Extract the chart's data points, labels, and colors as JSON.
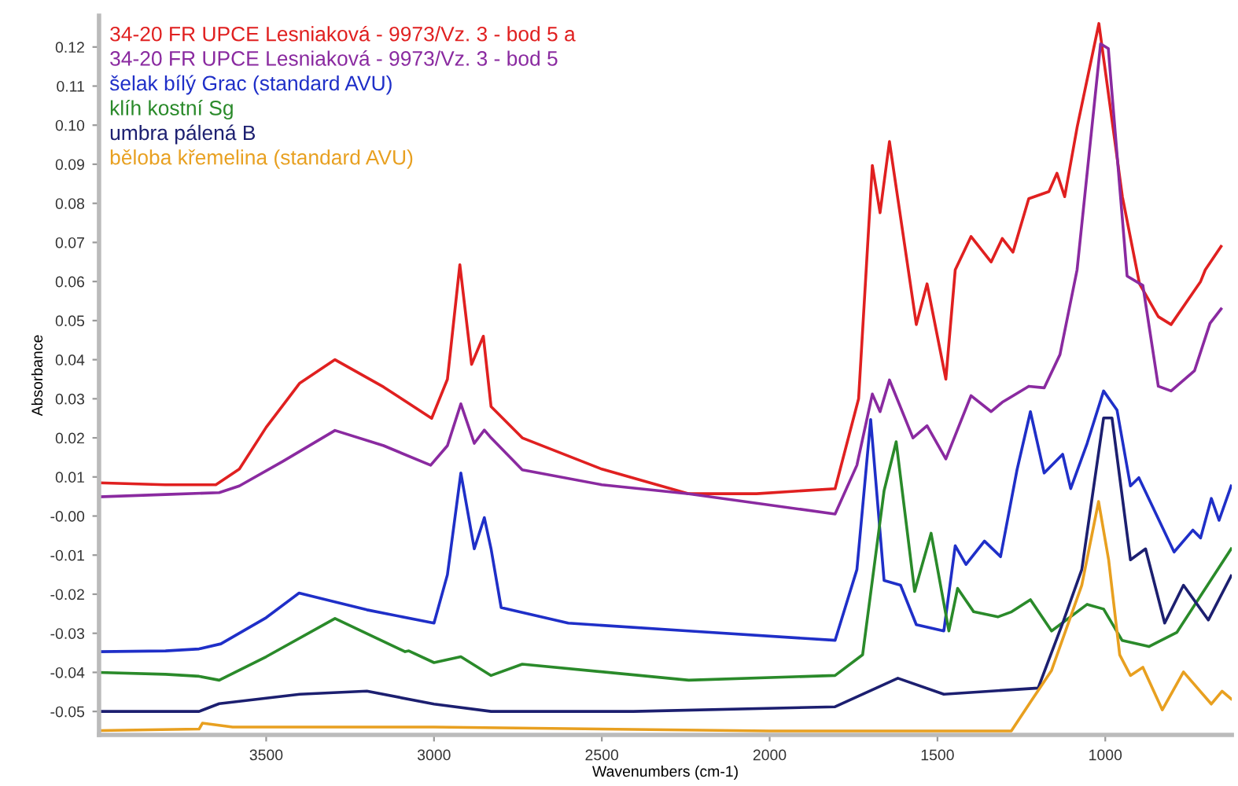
{
  "chart_data": {
    "type": "line",
    "xlabel": "Wavenumbers (cm-1)",
    "ylabel": "Absorbance",
    "xlim": [
      3998,
      623
    ],
    "ylim": [
      -0.056,
      0.128
    ],
    "xticks": [
      3500,
      3000,
      2500,
      2000,
      1500,
      1000
    ],
    "yticks": [
      {
        "value": -0.05,
        "label": "-0.05"
      },
      {
        "value": -0.04,
        "label": "-0.04"
      },
      {
        "value": -0.03,
        "label": "-0.03"
      },
      {
        "value": -0.02,
        "label": "-0.02"
      },
      {
        "value": -0.01,
        "label": "-0.01"
      },
      {
        "value": 0,
        "label": "-0.00"
      },
      {
        "value": 0.01,
        "label": "0.01"
      },
      {
        "value": 0.02,
        "label": "0.02"
      },
      {
        "value": 0.03,
        "label": "0.03"
      },
      {
        "value": 0.04,
        "label": "0.04"
      },
      {
        "value": 0.05,
        "label": "0.05"
      },
      {
        "value": 0.06,
        "label": "0.06"
      },
      {
        "value": 0.07,
        "label": "0.07"
      },
      {
        "value": 0.08,
        "label": "0.08"
      },
      {
        "value": 0.09,
        "label": "0.09"
      },
      {
        "value": 0.1,
        "label": "0.10"
      },
      {
        "value": 0.11,
        "label": "0.11"
      },
      {
        "value": 0.12,
        "label": "0.12"
      }
    ],
    "legend": "top left",
    "marker": "none",
    "line_style": "solid",
    "series": [
      {
        "name": "34-20 FR UPCE Lesniaková - 9973/Vz. 3 - bod 5 a",
        "color": "#e02020",
        "x": [
          3998,
          3800,
          3650,
          3580,
          3500,
          3400,
          3295,
          3150,
          3007,
          2960,
          2923,
          2888,
          2853,
          2830,
          2737,
          2500,
          2241,
          2039,
          1805,
          1735,
          1694,
          1671,
          1643,
          1563,
          1531,
          1475,
          1447,
          1400,
          1340,
          1307,
          1275,
          1228,
          1168,
          1144,
          1121,
          1084,
          1019,
          949,
          898,
          842,
          804,
          716,
          702,
          655
        ],
        "values": [
          0.0085,
          0.008,
          0.008,
          0.012,
          0.0227,
          0.034,
          0.04,
          0.033,
          0.025,
          0.035,
          0.0643,
          0.0388,
          0.046,
          0.028,
          0.02,
          0.012,
          0.0057,
          0.0057,
          0.007,
          0.03,
          0.0897,
          0.0776,
          0.0958,
          0.049,
          0.0594,
          0.035,
          0.063,
          0.0715,
          0.065,
          0.071,
          0.0675,
          0.0812,
          0.083,
          0.0877,
          0.0817,
          0.0994,
          0.126,
          0.0817,
          0.0594,
          0.051,
          0.049,
          0.06,
          0.063,
          0.069
        ]
      },
      {
        "name": "34-20 FR UPCE Lesniaková - 9973/Vz. 3 - bod 5",
        "color": "#8a2aa0",
        "x": [
          3998,
          3800,
          3640,
          3580,
          3450,
          3295,
          3150,
          3010,
          2960,
          2920,
          2880,
          2850,
          2830,
          2737,
          2500,
          2241,
          1805,
          1740,
          1694,
          1671,
          1643,
          1573,
          1531,
          1475,
          1400,
          1340,
          1307,
          1228,
          1182,
          1135,
          1084,
          1014,
          991,
          935,
          888,
          842,
          804,
          734,
          688,
          655
        ],
        "values": [
          0.0049,
          0.0055,
          0.006,
          0.0077,
          0.014,
          0.0219,
          0.018,
          0.013,
          0.018,
          0.0287,
          0.0186,
          0.022,
          0.02,
          0.0118,
          0.008,
          0.0057,
          0.0005,
          0.013,
          0.0312,
          0.0267,
          0.0348,
          0.02,
          0.0231,
          0.0146,
          0.0308,
          0.0267,
          0.0291,
          0.0332,
          0.0328,
          0.0413,
          0.063,
          0.1208,
          0.1196,
          0.0614,
          0.059,
          0.0332,
          0.032,
          0.0372,
          0.0493,
          0.053
        ]
      },
      {
        "name": "šelak bílý Grac (standard AVU)",
        "color": "#1f2fc8",
        "x": [
          3998,
          3800,
          3700,
          3635,
          3500,
          3402,
          3200,
          3000,
          2960,
          2920,
          2880,
          2850,
          2830,
          2800,
          2600,
          2241,
          1805,
          1740,
          1699,
          1659,
          1610,
          1563,
          1481,
          1447,
          1415,
          1360,
          1312,
          1263,
          1223,
          1182,
          1127,
          1103,
          1054,
          1005,
          965,
          925,
          900,
          795,
          739,
          716,
          684,
          661,
          625
        ],
        "values": [
          -0.0347,
          -0.0345,
          -0.034,
          -0.0327,
          -0.026,
          -0.0197,
          -0.024,
          -0.0274,
          -0.015,
          0.011,
          -0.0084,
          -0.0004,
          -0.0084,
          -0.0234,
          -0.0274,
          -0.0294,
          -0.0318,
          -0.0137,
          0.0247,
          -0.0165,
          -0.0177,
          -0.0278,
          -0.0294,
          -0.0076,
          -0.0124,
          -0.0064,
          -0.0104,
          0.0118,
          0.0267,
          0.011,
          0.0158,
          0.007,
          0.0186,
          0.032,
          0.0271,
          0.0077,
          0.0098,
          -0.0092,
          -0.0036,
          -0.0056,
          0.0045,
          -0.0011,
          0.0077
        ]
      },
      {
        "name": "klíh kostní Sg",
        "color": "#2a8a2a",
        "x": [
          3998,
          3800,
          3700,
          3640,
          3500,
          3295,
          3086,
          3075,
          3000,
          2920,
          2830,
          2737,
          2241,
          1805,
          1723,
          1659,
          1623,
          1568,
          1519,
          1466,
          1440,
          1392,
          1320,
          1279,
          1223,
          1160,
          1054,
          1005,
          950,
          870,
          787,
          625
        ],
        "values": [
          -0.04,
          -0.0405,
          -0.041,
          -0.042,
          -0.036,
          -0.0262,
          -0.0347,
          -0.0345,
          -0.0375,
          -0.036,
          -0.0408,
          -0.0379,
          -0.042,
          -0.0408,
          -0.0355,
          0.0065,
          0.019,
          -0.0193,
          -0.0044,
          -0.0294,
          -0.0185,
          -0.0245,
          -0.0258,
          -0.0245,
          -0.0214,
          -0.0294,
          -0.0226,
          -0.0238,
          -0.0318,
          -0.0334,
          -0.0298,
          -0.0084
        ]
      },
      {
        "name": "umbra pálená B",
        "color": "#1c1f70",
        "x": [
          3998,
          3700,
          3640,
          3400,
          3200,
          3000,
          2830,
          2406,
          1805,
          1618,
          1481,
          1200,
          1127,
          1070,
          1005,
          980,
          925,
          880,
          823,
          767,
          693,
          625
        ],
        "values": [
          -0.05,
          -0.05,
          -0.048,
          -0.0456,
          -0.0448,
          -0.0481,
          -0.05,
          -0.05,
          -0.0488,
          -0.0415,
          -0.0456,
          -0.044,
          -0.0274,
          -0.0137,
          0.0251,
          0.0251,
          -0.0112,
          -0.0084,
          -0.0274,
          -0.0177,
          -0.0266,
          -0.0153
        ]
      },
      {
        "name": "běloba křemelina (standard AVU)",
        "color": "#e8a020",
        "x": [
          3998,
          3700,
          3690,
          3600,
          3000,
          2000,
          1280,
          1223,
          1160,
          1070,
          1020,
          990,
          957,
          925,
          888,
          830,
          767,
          684,
          652,
          625
        ],
        "values": [
          -0.0549,
          -0.0545,
          -0.053,
          -0.054,
          -0.054,
          -0.055,
          -0.055,
          -0.0476,
          -0.0395,
          -0.0177,
          0.0037,
          -0.0112,
          -0.0355,
          -0.0408,
          -0.0387,
          -0.0496,
          -0.0399,
          -0.0481,
          -0.0448,
          -0.0468
        ]
      }
    ]
  }
}
